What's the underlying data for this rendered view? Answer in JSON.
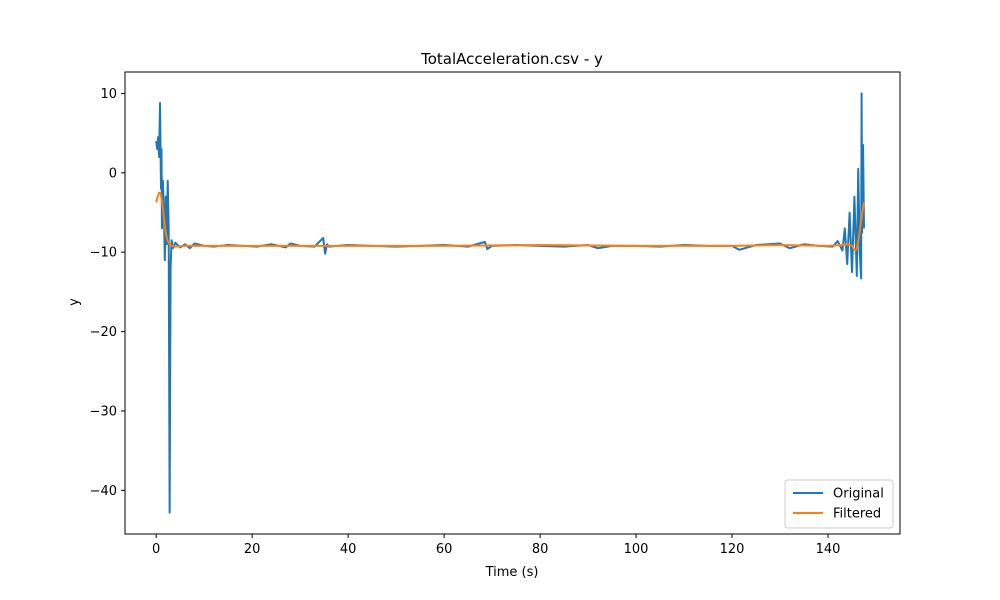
{
  "chart_data": {
    "type": "line",
    "title": "TotalAcceleration.csv - y",
    "xlabel": "Time (s)",
    "ylabel": "y",
    "xlim": [
      -6.5,
      155
    ],
    "ylim": [
      -45.5,
      12.7
    ],
    "xticks": [
      0,
      20,
      40,
      60,
      80,
      100,
      120,
      140
    ],
    "yticks": [
      10,
      0,
      -10,
      -20,
      -30,
      -40
    ],
    "grid": false,
    "legend": "bottom-right",
    "series": [
      {
        "name": "Original",
        "color": "#1f77b4",
        "x": [
          0.0,
          0.2,
          0.4,
          0.6,
          0.8,
          1.0,
          1.1,
          1.2,
          1.4,
          1.6,
          1.8,
          2.0,
          2.2,
          2.4,
          2.6,
          2.8,
          3.0,
          3.2,
          3.5,
          4.0,
          5.0,
          6.0,
          7.0,
          8.0,
          10.0,
          12.0,
          15.0,
          18.0,
          21.0,
          24.0,
          27.0,
          28.0,
          30.0,
          33.0,
          34.8,
          35.2,
          35.6,
          36.0,
          40.0,
          45.0,
          50.0,
          55.0,
          60.0,
          65.0,
          68.5,
          69.0,
          70.0,
          75.0,
          80.0,
          85.0,
          90.0,
          92.0,
          95.0,
          100.0,
          105.0,
          110.0,
          115.0,
          120.0,
          121.5,
          125.0,
          130.0,
          132.0,
          135.0,
          138.0,
          141.0,
          142.0,
          143.0,
          143.5,
          144.0,
          144.5,
          145.0,
          145.5,
          146.0,
          146.3,
          146.6,
          146.9,
          147.0,
          147.1,
          147.3,
          147.5
        ],
        "y": [
          4.0,
          3.0,
          4.5,
          2.0,
          8.8,
          -2.0,
          3.0,
          -7.0,
          -1.0,
          -5.0,
          -11.0,
          -3.0,
          -9.0,
          -1.0,
          -7.0,
          -42.8,
          -12.0,
          -8.5,
          -9.5,
          -8.8,
          -9.4,
          -9.0,
          -9.5,
          -8.9,
          -9.2,
          -9.3,
          -9.1,
          -9.2,
          -9.3,
          -9.0,
          -9.4,
          -8.9,
          -9.2,
          -9.3,
          -8.2,
          -10.2,
          -9.0,
          -9.3,
          -9.1,
          -9.2,
          -9.3,
          -9.2,
          -9.1,
          -9.3,
          -8.7,
          -9.6,
          -9.2,
          -9.1,
          -9.2,
          -9.3,
          -9.1,
          -9.5,
          -9.2,
          -9.2,
          -9.3,
          -9.1,
          -9.2,
          -9.2,
          -9.7,
          -9.1,
          -8.9,
          -9.5,
          -9.0,
          -9.2,
          -9.3,
          -8.6,
          -9.8,
          -7.0,
          -11.5,
          -5.0,
          -12.5,
          -3.0,
          -13.0,
          0.5,
          -10.0,
          -13.3,
          10.0,
          -7.5,
          3.5,
          -7.0
        ]
      },
      {
        "name": "Filtered",
        "color": "#ff7f0e",
        "x": [
          0.0,
          0.3,
          0.6,
          0.9,
          1.2,
          1.5,
          1.8,
          2.1,
          2.4,
          2.8,
          3.3,
          4.0,
          6.0,
          10.0,
          20.0,
          40.0,
          60.0,
          80.0,
          100.0,
          120.0,
          130.0,
          140.0,
          143.0,
          144.0,
          145.0,
          145.6,
          146.0,
          146.4,
          146.8,
          147.2,
          147.5
        ],
        "y": [
          -3.7,
          -3.0,
          -2.5,
          -2.6,
          -3.5,
          -5.0,
          -6.8,
          -7.9,
          -8.6,
          -9.0,
          -9.2,
          -9.3,
          -9.2,
          -9.2,
          -9.2,
          -9.2,
          -9.2,
          -9.1,
          -9.2,
          -9.2,
          -9.1,
          -9.2,
          -9.1,
          -9.0,
          -9.2,
          -9.8,
          -9.6,
          -8.2,
          -6.5,
          -4.8,
          -3.7
        ]
      }
    ]
  }
}
